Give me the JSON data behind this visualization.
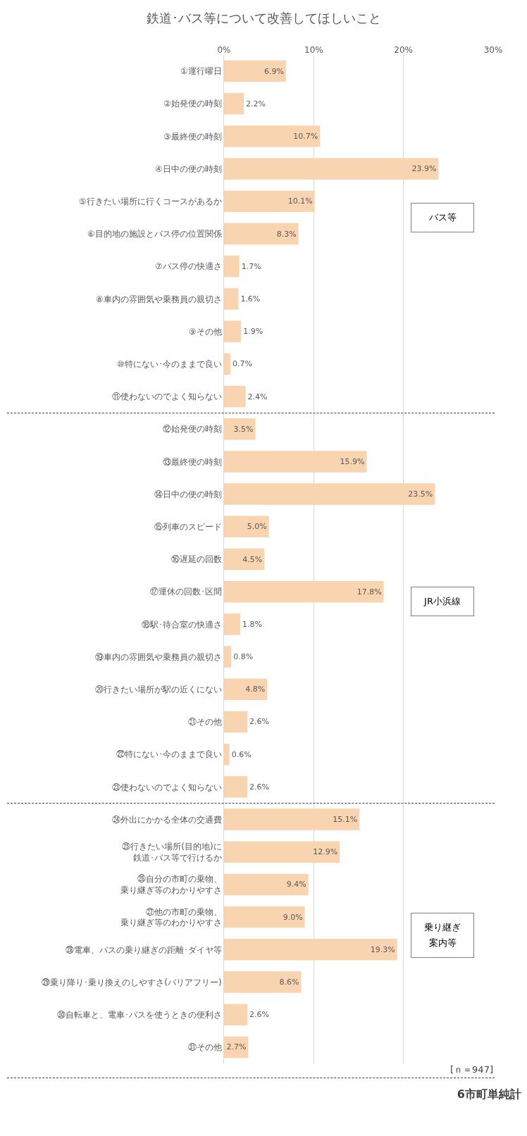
{
  "chart_data": {
    "type": "bar",
    "orientation": "horizontal",
    "title": "鉄道･バス等について改善してほしいこと",
    "categories": [
      "①運行曜日",
      "②始発便の時刻",
      "③最終便の時刻",
      "④日中の便の時刻",
      "⑤行きたい場所に行くコースがあるか",
      "⑥目的地の施設とバス停の位置関係",
      "⑦バス停の快適さ",
      "⑧車内の雰囲気や乗務員の親切さ",
      "⑨その他",
      "⑩特にない･今のままで良い",
      "⑪使わないのでよく知らない",
      "⑫始発便の時刻",
      "⑬最終便の時刻",
      "⑭日中の便の時刻",
      "⑮列車のスピード",
      "⑯遅延の回数",
      "⑰運休の回数･区間",
      "⑱駅･待合室の快適さ",
      "⑲車内の雰囲気や乗務員の親切さ",
      "⑳行きたい場所が駅の近くにない",
      "㉑その他",
      "㉒特にない･今のままで良い",
      "㉓使わないのでよく知らない",
      "㉔外出にかかる全体の交通費",
      "㉕行きたい場所(目的地)に鉄道･バス等で行けるか",
      "㉖自分の市町の乗物、乗り継ぎ等のわかりやすさ",
      "㉗他の市町の乗物、乗り継ぎ等のわかりやすさ",
      "㉘電車、バスの乗り継ぎの距離･ダイヤ等",
      "㉙乗り降り･乗り換えのしやすさ(バリアフリー)",
      "㉚自転車と、電車･バスを使うときの便利さ",
      "㉛その他"
    ],
    "values": [
      6.9,
      2.2,
      10.7,
      23.9,
      10.1,
      8.3,
      1.7,
      1.6,
      1.9,
      0.7,
      2.4,
      3.5,
      15.9,
      23.5,
      5.0,
      4.5,
      17.8,
      1.8,
      0.8,
      4.8,
      2.6,
      0.6,
      2.6,
      15.1,
      12.9,
      9.4,
      9.0,
      19.3,
      8.6,
      2.6,
      2.7
    ],
    "value_labels": [
      "6.9%",
      "2.2%",
      "10.7%",
      "23.9%",
      "10.1%",
      "8.3%",
      "1.7%",
      "1.6%",
      "1.9%",
      "0.7%",
      "2.4%",
      "3.5%",
      "15.9%",
      "23.5%",
      "5.0%",
      "4.5%",
      "17.8%",
      "1.8%",
      "0.8%",
      "4.8%",
      "2.6%",
      "0.6%",
      "2.6%",
      "15.1%",
      "12.9%",
      "9.4%",
      "9.0%",
      "19.3%",
      "8.6%",
      "2.6%",
      "2.7%"
    ],
    "color": "#f8d5b0",
    "xlim": [
      0,
      30
    ],
    "xticks": [
      {
        "value": 0,
        "label": "0%"
      },
      {
        "value": 10,
        "label": "10%"
      },
      {
        "value": 20,
        "label": "20%"
      },
      {
        "value": 30,
        "label": "30%"
      }
    ],
    "grid": "x",
    "annotations": [
      "バス等",
      "JR小浜線",
      "乗り継ぎ案内等",
      "[ｎ＝947]",
      "6市町単純計"
    ]
  }
}
